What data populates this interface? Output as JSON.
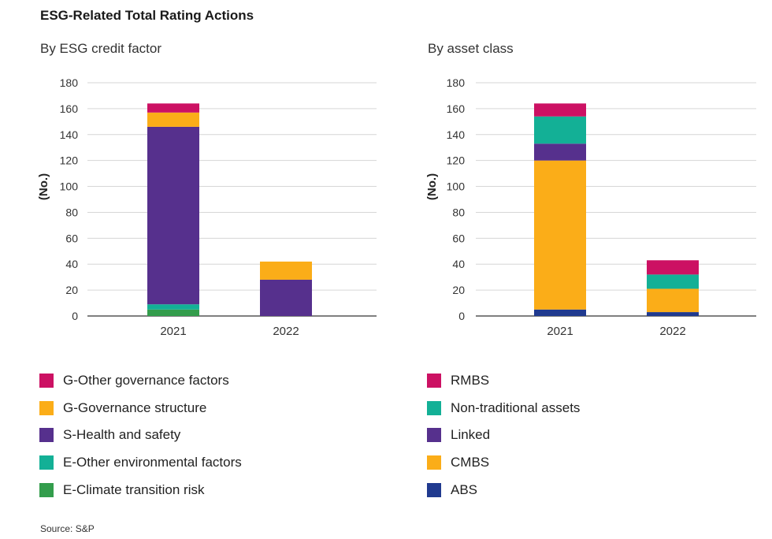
{
  "title": "ESG-Related Total Rating Actions",
  "source": "Source: S&P",
  "chart_data": [
    {
      "type": "bar",
      "stacked": true,
      "title": "By ESG credit factor",
      "xlabel": "",
      "ylabel": "(No.)",
      "ylim": [
        0,
        180
      ],
      "yticks": [
        0,
        20,
        40,
        60,
        80,
        100,
        120,
        140,
        160,
        180
      ],
      "grid": true,
      "legend_position": "bottom",
      "categories": [
        "2021",
        "2022"
      ],
      "series": [
        {
          "name": "E-Climate transition risk",
          "color": "#339d4c",
          "values": [
            5,
            0
          ]
        },
        {
          "name": "E-Other environmental factors",
          "color": "#13b096",
          "values": [
            4,
            0
          ]
        },
        {
          "name": "S-Health and safety",
          "color": "#56308d",
          "values": [
            137,
            28
          ]
        },
        {
          "name": "G-Governance structure",
          "color": "#fbad18",
          "values": [
            11,
            14
          ]
        },
        {
          "name": "G-Other governance factors",
          "color": "#cc1163",
          "values": [
            7,
            0
          ]
        }
      ]
    },
    {
      "type": "bar",
      "stacked": true,
      "title": "By asset class",
      "xlabel": "",
      "ylabel": "(No.)",
      "ylim": [
        0,
        180
      ],
      "yticks": [
        0,
        20,
        40,
        60,
        80,
        100,
        120,
        140,
        160,
        180
      ],
      "grid": true,
      "legend_position": "bottom",
      "categories": [
        "2021",
        "2022"
      ],
      "series": [
        {
          "name": "ABS",
          "color": "#203a8f",
          "values": [
            5,
            3
          ]
        },
        {
          "name": "CMBS",
          "color": "#fbad18",
          "values": [
            115,
            18
          ]
        },
        {
          "name": "Linked",
          "color": "#56308d",
          "values": [
            13,
            0
          ]
        },
        {
          "name": "Non-traditional assets",
          "color": "#13b096",
          "values": [
            21,
            11
          ]
        },
        {
          "name": "RMBS",
          "color": "#cc1163",
          "values": [
            10,
            11
          ]
        }
      ]
    }
  ]
}
